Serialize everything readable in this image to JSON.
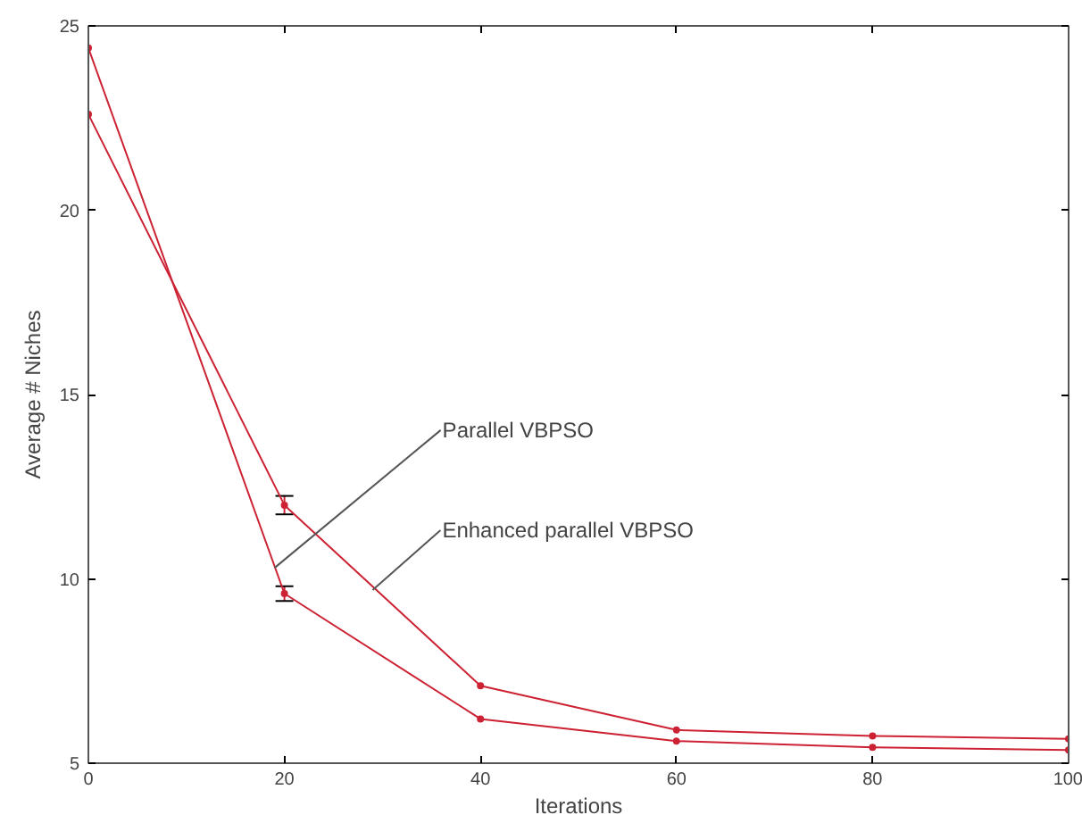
{
  "chart_data": {
    "type": "line",
    "xlabel": "Iterations",
    "ylabel": "Average # Niches",
    "x": [
      0,
      20,
      40,
      60,
      80,
      100
    ],
    "series": [
      {
        "color": "#cc2233",
        "values": [
          24.4,
          9.6,
          6.2,
          5.6,
          5.43,
          5.36
        ],
        "errors": [
          null,
          0.2,
          null,
          null,
          null,
          null
        ]
      },
      {
        "color": "#cc2233",
        "values": [
          22.6,
          12.0,
          7.1,
          5.9,
          5.74,
          5.66
        ],
        "errors": [
          null,
          0.25,
          null,
          null,
          null,
          null
        ]
      }
    ],
    "annotations": [
      {
        "text": "Parallel VBPSO",
        "x": 19,
        "y": 10.3
      },
      {
        "text": "Enhanced parallel VBPSO",
        "x": 29,
        "y": 9.7
      }
    ],
    "xlim": [
      0,
      100
    ],
    "xticks": [
      0,
      20,
      40,
      60,
      80,
      100
    ],
    "ylim": [
      5,
      25
    ],
    "yticks": [
      5,
      10,
      15,
      20,
      25
    ],
    "grid": false,
    "marker": "circle",
    "line_style": "solid"
  }
}
